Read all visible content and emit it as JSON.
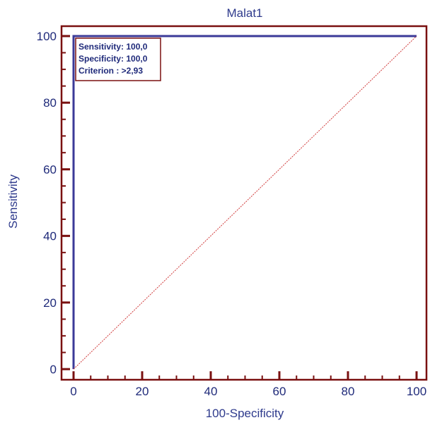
{
  "colors": {
    "frame": "#7a1010",
    "curve": "#3b3a98",
    "diagonal": "#d03a3a",
    "text": "#2e3a8c"
  },
  "chart_data": {
    "type": "line",
    "title": "Malat1",
    "xlabel": "100-Specificity",
    "ylabel": "Sensitivity",
    "xlim": [
      0,
      100
    ],
    "ylim": [
      0,
      100
    ],
    "x_ticks": [
      "0",
      "20",
      "40",
      "60",
      "80",
      "100"
    ],
    "y_ticks": [
      "0",
      "20",
      "40",
      "60",
      "80",
      "100"
    ],
    "grid": false,
    "series": [
      {
        "style": "solid",
        "color": "#3b3a98",
        "points": [
          [
            0,
            0
          ],
          [
            0,
            100
          ],
          [
            100,
            100
          ]
        ]
      },
      {
        "style": "dotted",
        "color": "#d03a3a",
        "points": [
          [
            0,
            0
          ],
          [
            100,
            100
          ]
        ]
      }
    ],
    "annotation": {
      "lines": [
        "Sensitivity: 100,0",
        "Specificity: 100,0",
        "Criterion : >2,93"
      ],
      "placement": "top-left"
    }
  }
}
